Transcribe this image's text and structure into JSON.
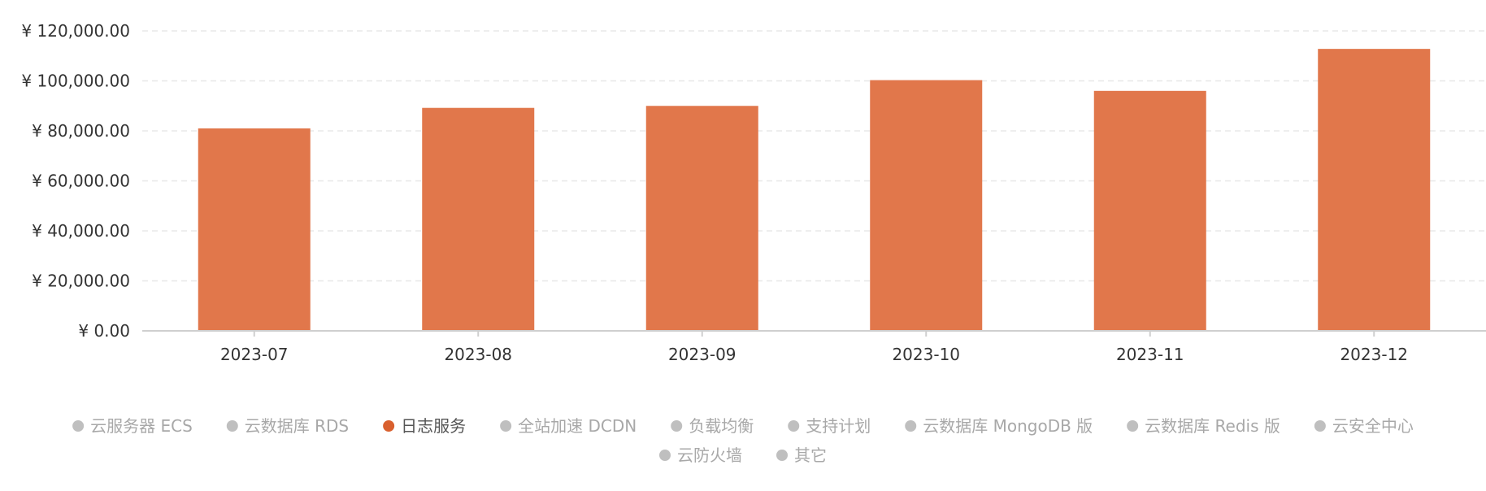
{
  "chart_data": {
    "type": "bar",
    "categories": [
      "2023-07",
      "2023-08",
      "2023-09",
      "2023-10",
      "2023-11",
      "2023-12"
    ],
    "series": [
      {
        "name": "日志服务",
        "values": [
          81000,
          89200,
          90000,
          100300,
          96000,
          112800
        ],
        "color": "#E1774B"
      }
    ],
    "ylim": [
      0,
      120000
    ],
    "y_ticks": [
      0,
      20000,
      40000,
      60000,
      80000,
      100000,
      120000
    ],
    "y_tick_labels": [
      "¥ 0.00",
      "¥ 20,000.00",
      "¥ 40,000.00",
      "¥ 60,000.00",
      "¥ 80,000.00",
      "¥ 100,000.00",
      "¥ 120,000.00"
    ],
    "grid": true,
    "title": "",
    "xlabel": "",
    "ylabel": "",
    "legend": {
      "placement": "bottom",
      "items": [
        {
          "label": "云服务器 ECS",
          "active": false
        },
        {
          "label": "云数据库 RDS",
          "active": false
        },
        {
          "label": "日志服务",
          "active": true
        },
        {
          "label": "全站加速 DCDN",
          "active": false
        },
        {
          "label": "负载均衡",
          "active": false
        },
        {
          "label": "支持计划",
          "active": false
        },
        {
          "label": "云数据库 MongoDB 版",
          "active": false
        },
        {
          "label": "云数据库 Redis 版",
          "active": false
        },
        {
          "label": "云安全中心",
          "active": false
        },
        {
          "label": "云防火墙",
          "active": false
        },
        {
          "label": "其它",
          "active": false
        }
      ]
    },
    "colors": {
      "active_dot": "#D9602E",
      "inactive_dot": "#BFBFBF",
      "active_text": "#555555",
      "inactive_text": "#A8A8A8",
      "axis_text": "#333333",
      "grid": "#E8E8E8",
      "axis_line": "#CFCFCF"
    }
  }
}
